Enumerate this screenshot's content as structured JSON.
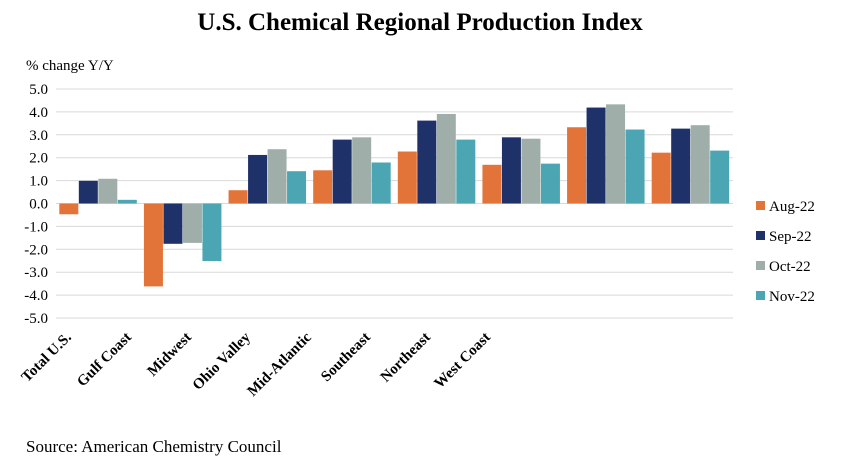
{
  "chart_data": {
    "type": "bar",
    "title": "U.S. Chemical Regional Production Index",
    "ylabel": "% change Y/Y",
    "xlabel": "",
    "source": "Source: American Chemistry Council",
    "ylim": [
      -5,
      5
    ],
    "yticks": [
      "5.0",
      "4.0",
      "3.0",
      "2.0",
      "1.0",
      "0.0",
      "-1.0",
      "-2.0",
      "-3.0",
      "-4.0",
      "-5.0"
    ],
    "grid": true,
    "legend_position": "right",
    "categories": [
      "Total U.S.",
      "Gulf Coast",
      "Midwest",
      "Ohio Valley",
      "Mid-Atlantic",
      "Southeast",
      "Northeast",
      "West Coast"
    ],
    "series": [
      {
        "name": "Aug-22",
        "color": "#E2743A",
        "values": [
          -0.47,
          -3.62,
          0.58,
          1.45,
          2.27,
          1.69,
          3.33,
          2.22
        ]
      },
      {
        "name": "Sep-22",
        "color": "#1F3169",
        "values": [
          0.99,
          -1.76,
          2.12,
          2.79,
          3.62,
          2.89,
          4.19,
          3.27
        ]
      },
      {
        "name": "Oct-22",
        "color": "#9FAEA8",
        "values": [
          1.08,
          -1.72,
          2.37,
          2.89,
          3.91,
          2.83,
          4.33,
          3.42
        ]
      },
      {
        "name": "Nov-22",
        "color": "#4BA5B2",
        "values": [
          0.16,
          -2.51,
          1.41,
          1.79,
          2.79,
          1.74,
          3.23,
          2.31
        ]
      }
    ]
  }
}
